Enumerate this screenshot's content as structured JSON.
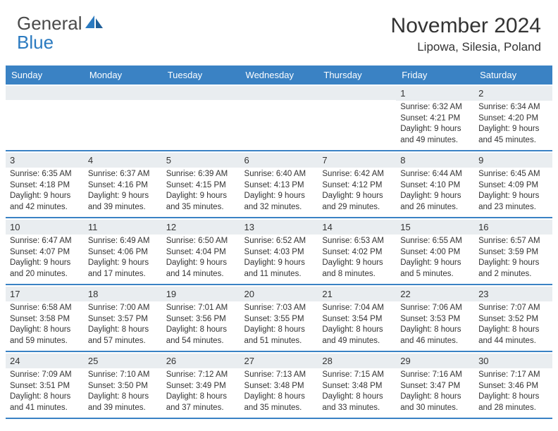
{
  "brand": {
    "part1": "General",
    "part2": "Blue"
  },
  "title": "November 2024",
  "location": "Lipowa, Silesia, Poland",
  "colors": {
    "header_bg": "#3a82c4",
    "daynum_bg": "#e9edf0",
    "text": "#333333",
    "brand_blue": "#2a7ac0"
  },
  "day_headers": [
    "Sunday",
    "Monday",
    "Tuesday",
    "Wednesday",
    "Thursday",
    "Friday",
    "Saturday"
  ],
  "weeks": [
    [
      {
        "n": "",
        "sr": "",
        "ss": "",
        "dl": ""
      },
      {
        "n": "",
        "sr": "",
        "ss": "",
        "dl": ""
      },
      {
        "n": "",
        "sr": "",
        "ss": "",
        "dl": ""
      },
      {
        "n": "",
        "sr": "",
        "ss": "",
        "dl": ""
      },
      {
        "n": "",
        "sr": "",
        "ss": "",
        "dl": ""
      },
      {
        "n": "1",
        "sr": "Sunrise: 6:32 AM",
        "ss": "Sunset: 4:21 PM",
        "dl": "Daylight: 9 hours and 49 minutes."
      },
      {
        "n": "2",
        "sr": "Sunrise: 6:34 AM",
        "ss": "Sunset: 4:20 PM",
        "dl": "Daylight: 9 hours and 45 minutes."
      }
    ],
    [
      {
        "n": "3",
        "sr": "Sunrise: 6:35 AM",
        "ss": "Sunset: 4:18 PM",
        "dl": "Daylight: 9 hours and 42 minutes."
      },
      {
        "n": "4",
        "sr": "Sunrise: 6:37 AM",
        "ss": "Sunset: 4:16 PM",
        "dl": "Daylight: 9 hours and 39 minutes."
      },
      {
        "n": "5",
        "sr": "Sunrise: 6:39 AM",
        "ss": "Sunset: 4:15 PM",
        "dl": "Daylight: 9 hours and 35 minutes."
      },
      {
        "n": "6",
        "sr": "Sunrise: 6:40 AM",
        "ss": "Sunset: 4:13 PM",
        "dl": "Daylight: 9 hours and 32 minutes."
      },
      {
        "n": "7",
        "sr": "Sunrise: 6:42 AM",
        "ss": "Sunset: 4:12 PM",
        "dl": "Daylight: 9 hours and 29 minutes."
      },
      {
        "n": "8",
        "sr": "Sunrise: 6:44 AM",
        "ss": "Sunset: 4:10 PM",
        "dl": "Daylight: 9 hours and 26 minutes."
      },
      {
        "n": "9",
        "sr": "Sunrise: 6:45 AM",
        "ss": "Sunset: 4:09 PM",
        "dl": "Daylight: 9 hours and 23 minutes."
      }
    ],
    [
      {
        "n": "10",
        "sr": "Sunrise: 6:47 AM",
        "ss": "Sunset: 4:07 PM",
        "dl": "Daylight: 9 hours and 20 minutes."
      },
      {
        "n": "11",
        "sr": "Sunrise: 6:49 AM",
        "ss": "Sunset: 4:06 PM",
        "dl": "Daylight: 9 hours and 17 minutes."
      },
      {
        "n": "12",
        "sr": "Sunrise: 6:50 AM",
        "ss": "Sunset: 4:04 PM",
        "dl": "Daylight: 9 hours and 14 minutes."
      },
      {
        "n": "13",
        "sr": "Sunrise: 6:52 AM",
        "ss": "Sunset: 4:03 PM",
        "dl": "Daylight: 9 hours and 11 minutes."
      },
      {
        "n": "14",
        "sr": "Sunrise: 6:53 AM",
        "ss": "Sunset: 4:02 PM",
        "dl": "Daylight: 9 hours and 8 minutes."
      },
      {
        "n": "15",
        "sr": "Sunrise: 6:55 AM",
        "ss": "Sunset: 4:00 PM",
        "dl": "Daylight: 9 hours and 5 minutes."
      },
      {
        "n": "16",
        "sr": "Sunrise: 6:57 AM",
        "ss": "Sunset: 3:59 PM",
        "dl": "Daylight: 9 hours and 2 minutes."
      }
    ],
    [
      {
        "n": "17",
        "sr": "Sunrise: 6:58 AM",
        "ss": "Sunset: 3:58 PM",
        "dl": "Daylight: 8 hours and 59 minutes."
      },
      {
        "n": "18",
        "sr": "Sunrise: 7:00 AM",
        "ss": "Sunset: 3:57 PM",
        "dl": "Daylight: 8 hours and 57 minutes."
      },
      {
        "n": "19",
        "sr": "Sunrise: 7:01 AM",
        "ss": "Sunset: 3:56 PM",
        "dl": "Daylight: 8 hours and 54 minutes."
      },
      {
        "n": "20",
        "sr": "Sunrise: 7:03 AM",
        "ss": "Sunset: 3:55 PM",
        "dl": "Daylight: 8 hours and 51 minutes."
      },
      {
        "n": "21",
        "sr": "Sunrise: 7:04 AM",
        "ss": "Sunset: 3:54 PM",
        "dl": "Daylight: 8 hours and 49 minutes."
      },
      {
        "n": "22",
        "sr": "Sunrise: 7:06 AM",
        "ss": "Sunset: 3:53 PM",
        "dl": "Daylight: 8 hours and 46 minutes."
      },
      {
        "n": "23",
        "sr": "Sunrise: 7:07 AM",
        "ss": "Sunset: 3:52 PM",
        "dl": "Daylight: 8 hours and 44 minutes."
      }
    ],
    [
      {
        "n": "24",
        "sr": "Sunrise: 7:09 AM",
        "ss": "Sunset: 3:51 PM",
        "dl": "Daylight: 8 hours and 41 minutes."
      },
      {
        "n": "25",
        "sr": "Sunrise: 7:10 AM",
        "ss": "Sunset: 3:50 PM",
        "dl": "Daylight: 8 hours and 39 minutes."
      },
      {
        "n": "26",
        "sr": "Sunrise: 7:12 AM",
        "ss": "Sunset: 3:49 PM",
        "dl": "Daylight: 8 hours and 37 minutes."
      },
      {
        "n": "27",
        "sr": "Sunrise: 7:13 AM",
        "ss": "Sunset: 3:48 PM",
        "dl": "Daylight: 8 hours and 35 minutes."
      },
      {
        "n": "28",
        "sr": "Sunrise: 7:15 AM",
        "ss": "Sunset: 3:48 PM",
        "dl": "Daylight: 8 hours and 33 minutes."
      },
      {
        "n": "29",
        "sr": "Sunrise: 7:16 AM",
        "ss": "Sunset: 3:47 PM",
        "dl": "Daylight: 8 hours and 30 minutes."
      },
      {
        "n": "30",
        "sr": "Sunrise: 7:17 AM",
        "ss": "Sunset: 3:46 PM",
        "dl": "Daylight: 8 hours and 28 minutes."
      }
    ]
  ]
}
